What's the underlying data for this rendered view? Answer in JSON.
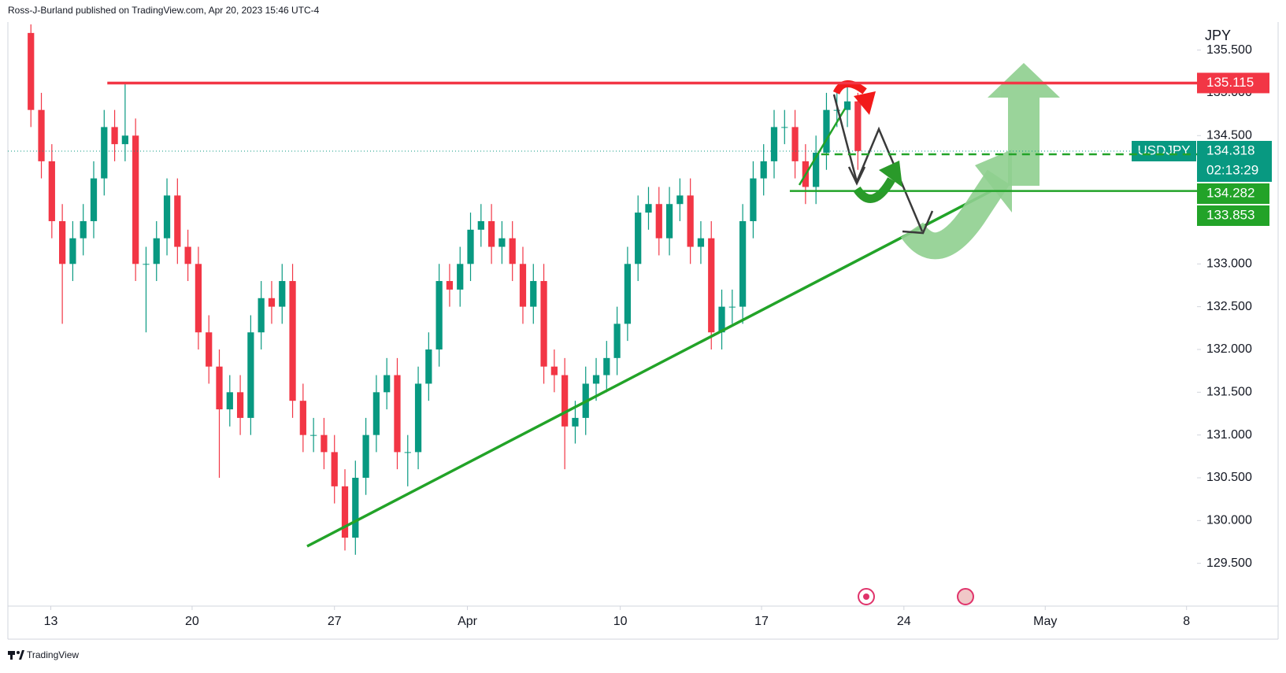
{
  "header": "Ross-J-Burland published on TradingView.com, Apr 20, 2023 15:46 UTC-4",
  "footer": "TradingView",
  "chart_data": {
    "type": "candlestick",
    "symbol": "USDJPY",
    "currency": "JPY",
    "colors": {
      "up": "#089981",
      "down": "#f23645"
    },
    "open": [
      135.7,
      134.8,
      134.2,
      133.5,
      133.0,
      133.3,
      133.5,
      134.0,
      134.6,
      134.4,
      134.5,
      133.0,
      133.0,
      133.3,
      133.8,
      133.2,
      133.0,
      132.2,
      131.8,
      131.3,
      131.5,
      131.2,
      132.2,
      132.6,
      132.5,
      132.8,
      131.4,
      131.0,
      131.0,
      130.8,
      130.4,
      129.8,
      130.5,
      131.0,
      131.5,
      131.7,
      130.8,
      130.8,
      131.6,
      132.0,
      132.8,
      132.7,
      133.0,
      133.4,
      133.5,
      133.2,
      133.3,
      133.0,
      132.5,
      132.8,
      131.8,
      131.7,
      131.1,
      131.2,
      131.6,
      131.7,
      131.9,
      132.3,
      133.0,
      133.6,
      133.7,
      133.3,
      133.7,
      133.8,
      133.2,
      133.3,
      132.2,
      132.5,
      132.5,
      133.5,
      134.0,
      134.2,
      134.6,
      134.6,
      134.2,
      133.9,
      134.3,
      134.8,
      134.8,
      134.9
    ],
    "high": [
      135.8,
      135.0,
      134.4,
      133.7,
      133.5,
      133.7,
      134.2,
      134.8,
      134.8,
      135.1,
      134.7,
      133.2,
      133.5,
      134.0,
      134.0,
      133.4,
      133.2,
      132.4,
      132.0,
      131.7,
      131.7,
      132.4,
      132.8,
      132.8,
      133.0,
      133.0,
      131.6,
      131.2,
      131.2,
      131.0,
      130.6,
      130.7,
      131.2,
      131.7,
      131.9,
      131.9,
      131.0,
      131.8,
      132.2,
      133.0,
      133.0,
      133.2,
      133.6,
      133.7,
      133.7,
      133.5,
      133.5,
      133.2,
      133.0,
      133.0,
      132.0,
      131.9,
      131.4,
      131.8,
      131.9,
      132.1,
      132.5,
      133.2,
      133.8,
      133.9,
      133.9,
      133.9,
      134.0,
      134.0,
      133.5,
      133.5,
      132.7,
      132.7,
      133.7,
      134.2,
      134.4,
      134.8,
      134.8,
      134.8,
      134.4,
      134.5,
      135.0,
      135.0,
      135.1,
      135.0
    ],
    "low": [
      134.6,
      134.0,
      133.3,
      132.3,
      132.8,
      133.1,
      133.3,
      133.8,
      134.2,
      134.2,
      132.8,
      132.2,
      132.8,
      133.1,
      133.0,
      132.8,
      132.0,
      131.6,
      130.5,
      131.1,
      131.0,
      131.0,
      132.0,
      132.3,
      132.3,
      131.2,
      130.8,
      130.8,
      130.6,
      130.2,
      129.65,
      129.6,
      130.3,
      130.8,
      131.3,
      130.6,
      130.4,
      130.6,
      131.4,
      131.8,
      132.5,
      132.5,
      132.8,
      133.2,
      133.0,
      133.0,
      132.8,
      132.3,
      132.3,
      131.6,
      131.5,
      130.6,
      130.9,
      131.0,
      131.4,
      131.5,
      131.7,
      132.1,
      132.8,
      133.4,
      133.1,
      133.1,
      133.5,
      133.0,
      133.0,
      132.0,
      132.0,
      132.3,
      132.3,
      133.3,
      133.8,
      134.0,
      134.4,
      134.0,
      133.7,
      133.7,
      134.1,
      134.6,
      134.6,
      134.1
    ],
    "close": [
      134.8,
      134.2,
      133.5,
      133.0,
      133.3,
      133.5,
      134.0,
      134.6,
      134.4,
      134.5,
      133.0,
      133.0,
      133.3,
      133.8,
      133.2,
      133.0,
      132.2,
      131.8,
      131.3,
      131.5,
      131.2,
      132.2,
      132.6,
      132.5,
      132.8,
      131.4,
      131.0,
      131.0,
      130.8,
      130.4,
      129.8,
      130.5,
      131.0,
      131.5,
      131.7,
      130.8,
      130.8,
      131.6,
      132.0,
      132.8,
      132.7,
      133.0,
      133.4,
      133.5,
      133.2,
      133.3,
      133.0,
      132.5,
      132.8,
      131.8,
      131.7,
      131.1,
      131.2,
      131.6,
      131.7,
      131.9,
      132.3,
      133.0,
      133.6,
      133.7,
      133.3,
      133.7,
      133.8,
      133.2,
      133.3,
      132.2,
      132.5,
      132.5,
      133.5,
      134.0,
      134.2,
      134.6,
      134.6,
      134.2,
      133.9,
      134.3,
      134.8,
      134.8,
      134.9,
      134.32
    ],
    "xlim": [
      -2.2,
      111.4
    ],
    "xticks": [
      {
        "value": 1.9,
        "label": "13"
      },
      {
        "value": 15.4,
        "label": "20"
      },
      {
        "value": 29.0,
        "label": "27"
      },
      {
        "value": 41.7,
        "label": "Apr"
      },
      {
        "value": 56.3,
        "label": "10"
      },
      {
        "value": 69.8,
        "label": "17"
      },
      {
        "value": 83.4,
        "label": "24"
      },
      {
        "value": 96.9,
        "label": "May"
      },
      {
        "value": 110.4,
        "label": "8"
      }
    ],
    "ylim": [
      129.0,
      135.8
    ],
    "yticks": [
      {
        "value": 129.5,
        "label": "129.500"
      },
      {
        "value": 130.0,
        "label": "130.000"
      },
      {
        "value": 130.5,
        "label": "130.500"
      },
      {
        "value": 131.0,
        "label": "131.000"
      },
      {
        "value": 131.5,
        "label": "131.500"
      },
      {
        "value": 132.0,
        "label": "132.000"
      },
      {
        "value": 132.5,
        "label": "132.500"
      },
      {
        "value": 133.0,
        "label": "133.000"
      },
      {
        "value": 133.5,
        "label": "133.500"
      },
      {
        "value": 134.0,
        "label": "134.000"
      },
      {
        "value": 134.5,
        "label": "134.500"
      },
      {
        "value": 135.0,
        "label": "135.000"
      },
      {
        "value": 135.5,
        "label": "135.500"
      }
    ],
    "last_price": 134.318,
    "countdown": "02:13:29",
    "levels": [
      {
        "value": 135.115,
        "color": "#f23645"
      },
      {
        "value": 134.282,
        "color": "#22a328"
      },
      {
        "value": 133.853,
        "color": "#22a328"
      }
    ]
  }
}
